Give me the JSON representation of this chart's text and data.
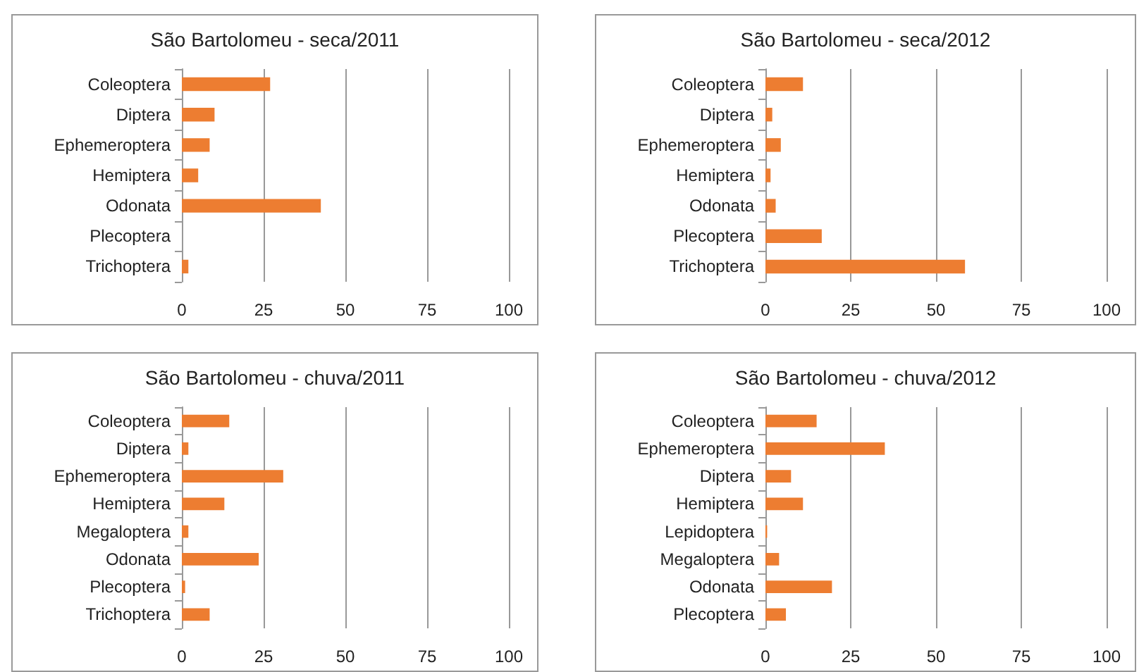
{
  "chart_data": [
    {
      "type": "bar",
      "orientation": "horizontal",
      "title": "São Bartolomeu - seca/2011",
      "categories": [
        "Coleoptera",
        "Diptera",
        "Ephemeroptera",
        "Hemiptera",
        "Odonata",
        "Plecoptera",
        "Trichoptera"
      ],
      "values": [
        27,
        10,
        8.5,
        5,
        42.5,
        0,
        2
      ],
      "color": "#ed7d31",
      "xlim": [
        0,
        100
      ],
      "xticks": [
        0,
        25,
        50,
        75,
        100
      ],
      "grid": "x"
    },
    {
      "type": "bar",
      "orientation": "horizontal",
      "title": "São Bartolomeu - seca/2012",
      "categories": [
        "Coleoptera",
        "Diptera",
        "Ephemeroptera",
        "Hemiptera",
        "Odonata",
        "Plecoptera",
        "Trichoptera"
      ],
      "values": [
        11,
        2,
        4.5,
        1.5,
        3,
        16.5,
        58.5
      ],
      "color": "#ed7d31",
      "xlim": [
        0,
        100
      ],
      "xticks": [
        0,
        25,
        50,
        75,
        100
      ],
      "grid": "x"
    },
    {
      "type": "bar",
      "orientation": "horizontal",
      "title": "São Bartolomeu - chuva/2011",
      "categories": [
        "Coleoptera",
        "Diptera",
        "Ephemeroptera",
        "Hemiptera",
        "Megaloptera",
        "Odonata",
        "Plecoptera",
        "Trichoptera"
      ],
      "values": [
        14.5,
        2,
        31,
        13,
        2,
        23.5,
        1,
        8.5
      ],
      "color": "#ed7d31",
      "xlim": [
        0,
        100
      ],
      "xticks": [
        0,
        25,
        50,
        75,
        100
      ],
      "grid": "x"
    },
    {
      "type": "bar",
      "orientation": "horizontal",
      "title": "São Bartolomeu - chuva/2012",
      "categories": [
        "Coleoptera",
        "Ephemeroptera",
        "Diptera",
        "Hemiptera",
        "Lepidoptera",
        "Megaloptera",
        "Odonata",
        "Plecoptera"
      ],
      "values": [
        15,
        35,
        7.5,
        11,
        0.5,
        4,
        19.5,
        6
      ],
      "color": "#ed7d31",
      "xlim": [
        0,
        100
      ],
      "xticks": [
        0,
        25,
        50,
        75,
        100
      ],
      "grid": "x"
    }
  ]
}
